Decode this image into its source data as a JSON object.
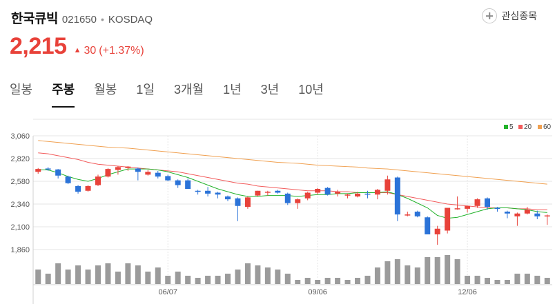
{
  "stock": {
    "name": "한국큐빅",
    "code": "021650",
    "separator": "•",
    "market": "KOSDAQ",
    "watch_label": "관심종목",
    "price": "2,215",
    "change_icon": "caret-up-icon",
    "change": "30",
    "change_pct": "(+1.37%)",
    "up_color": "#e8423a"
  },
  "tabs": [
    {
      "label": "일봉",
      "active": false
    },
    {
      "label": "주봉",
      "active": true
    },
    {
      "label": "월봉",
      "active": false
    },
    {
      "label": "1일",
      "active": false
    },
    {
      "label": "3개월",
      "active": false
    },
    {
      "label": "1년",
      "active": false
    },
    {
      "label": "3년",
      "active": false
    },
    {
      "label": "10년",
      "active": false
    }
  ],
  "chart_data": {
    "type": "candlestick",
    "ylim": [
      1860,
      3060
    ],
    "y_ticks": [
      "3,060",
      "2,820",
      "2,580",
      "2,340",
      "2,100",
      "1,860"
    ],
    "x_labels": [
      "06/07",
      "09/06",
      "12/06"
    ],
    "legend": [
      {
        "name": "5",
        "color": "#22b22b"
      },
      {
        "name": "20",
        "color": "#f25b5b"
      },
      {
        "name": "60",
        "color": "#f0a050"
      }
    ],
    "colors": {
      "up": "#e8423a",
      "down": "#2b73d8",
      "volume": "#9b9b9b",
      "grid": "#e5e5e5"
    },
    "candles": [
      [
        2680,
        2720,
        2660,
        2710,
        7
      ],
      [
        2715,
        2730,
        2690,
        2705,
        5
      ],
      [
        2705,
        2710,
        2610,
        2640,
        10
      ],
      [
        2630,
        2640,
        2550,
        2560,
        7
      ],
      [
        2530,
        2540,
        2450,
        2470,
        9
      ],
      [
        2480,
        2540,
        2470,
        2530,
        7
      ],
      [
        2540,
        2650,
        2530,
        2630,
        9
      ],
      [
        2630,
        2720,
        2620,
        2710,
        10
      ],
      [
        2700,
        2740,
        2650,
        2730,
        6
      ],
      [
        2720,
        2740,
        2690,
        2735,
        10
      ],
      [
        2715,
        2725,
        2590,
        2680,
        9
      ],
      [
        2650,
        2700,
        2640,
        2680,
        6
      ],
      [
        2670,
        2690,
        2610,
        2630,
        8
      ],
      [
        2635,
        2650,
        2580,
        2590,
        4
      ],
      [
        2590,
        2600,
        2510,
        2540,
        6
      ],
      [
        2590,
        2610,
        2500,
        2500,
        4
      ],
      [
        2480,
        2490,
        2440,
        2470,
        3
      ],
      [
        2480,
        2520,
        2420,
        2450,
        4
      ],
      [
        2460,
        2470,
        2400,
        2440,
        4
      ],
      [
        2420,
        2430,
        2370,
        2390,
        5
      ],
      [
        2400,
        2410,
        2160,
        2320,
        7
      ],
      [
        2310,
        2420,
        2290,
        2410,
        10
      ],
      [
        2430,
        2480,
        2420,
        2480,
        9
      ],
      [
        2470,
        2480,
        2430,
        2470,
        8
      ],
      [
        2480,
        2490,
        2450,
        2460,
        7
      ],
      [
        2450,
        2460,
        2330,
        2350,
        5
      ],
      [
        2350,
        2400,
        2290,
        2390,
        2
      ],
      [
        2400,
        2470,
        2380,
        2460,
        3
      ],
      [
        2460,
        2510,
        2440,
        2500,
        2
      ],
      [
        2510,
        2520,
        2430,
        2440,
        3
      ],
      [
        2450,
        2490,
        2420,
        2470,
        3
      ],
      [
        2440,
        2450,
        2400,
        2440,
        2
      ],
      [
        2420,
        2470,
        2410,
        2450,
        3
      ],
      [
        2450,
        2480,
        2400,
        2440,
        4
      ],
      [
        2440,
        2500,
        2390,
        2490,
        8
      ],
      [
        2480,
        2640,
        2440,
        2600,
        11
      ],
      [
        2620,
        2630,
        2160,
        2230,
        12
      ],
      [
        2220,
        2260,
        2210,
        2230,
        9
      ],
      [
        2260,
        2270,
        2200,
        2210,
        8
      ],
      [
        2200,
        2210,
        2020,
        2020,
        13
      ],
      [
        2020,
        2110,
        1910,
        2080,
        13
      ],
      [
        2060,
        2300,
        2030,
        2300,
        14
      ],
      [
        2290,
        2420,
        2280,
        2295,
        12
      ],
      [
        2290,
        2320,
        2250,
        2320,
        4
      ],
      [
        2320,
        2400,
        2300,
        2390,
        4
      ],
      [
        2400,
        2410,
        2280,
        2310,
        3
      ],
      [
        2300,
        2310,
        2260,
        2290,
        2
      ],
      [
        2260,
        2270,
        2190,
        2240,
        2
      ],
      [
        2210,
        2250,
        2110,
        2240,
        5
      ],
      [
        2240,
        2310,
        2230,
        2280,
        5
      ],
      [
        2240,
        2270,
        2180,
        2210,
        4
      ],
      [
        2220,
        2230,
        2120,
        2220,
        3
      ]
    ],
    "ma5": [
      2700,
      2700,
      2670,
      2630,
      2600,
      2580,
      2610,
      2650,
      2680,
      2710,
      2710,
      2710,
      2700,
      2680,
      2650,
      2620,
      2580,
      2540,
      2500,
      2470,
      2440,
      2420,
      2420,
      2430,
      2430,
      2430,
      2420,
      2430,
      2440,
      2440,
      2450,
      2450,
      2460,
      2460,
      2460,
      2470,
      2440,
      2400,
      2350,
      2300,
      2220,
      2190,
      2200,
      2230,
      2260,
      2290,
      2300,
      2300,
      2290,
      2280,
      2260,
      2250
    ],
    "ma20": [
      2880,
      2870,
      2850,
      2830,
      2810,
      2780,
      2760,
      2750,
      2740,
      2730,
      2720,
      2710,
      2700,
      2690,
      2680,
      2660,
      2640,
      2620,
      2600,
      2580,
      2560,
      2550,
      2530,
      2520,
      2510,
      2500,
      2490,
      2480,
      2480,
      2480,
      2470,
      2470,
      2460,
      2460,
      2460,
      2460,
      2440,
      2420,
      2400,
      2380,
      2360,
      2340,
      2330,
      2320,
      2310,
      2300,
      2300,
      2300,
      2290,
      2290,
      2280,
      2280
    ],
    "ma60": [
      3010,
      3000,
      2990,
      2980,
      2970,
      2960,
      2950,
      2940,
      2935,
      2930,
      2920,
      2910,
      2900,
      2890,
      2880,
      2870,
      2860,
      2850,
      2840,
      2830,
      2820,
      2810,
      2800,
      2790,
      2780,
      2775,
      2770,
      2760,
      2750,
      2745,
      2740,
      2735,
      2730,
      2720,
      2715,
      2710,
      2700,
      2690,
      2680,
      2670,
      2660,
      2650,
      2640,
      2630,
      2620,
      2610,
      2600,
      2590,
      2580,
      2570,
      2560,
      2550
    ]
  }
}
